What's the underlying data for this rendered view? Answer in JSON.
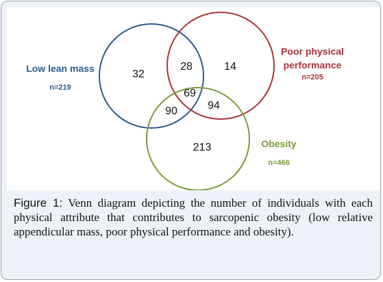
{
  "figure": {
    "caption_label": "Figure 1:",
    "caption_text": " Venn diagram depicting the number of individuals with each physical attribute that contributes to sarcopenic obesity (low relative appendicular mass, poor physical performance and obesity)."
  },
  "venn": {
    "sets": [
      {
        "id": "low_lean_mass",
        "label": "Low lean mass",
        "n_label": "n=219",
        "color": "#2e5a8a"
      },
      {
        "id": "poor_physical_performance",
        "label_line1": "Poor physical",
        "label_line2": "performance",
        "n_label": "n=205",
        "color": "#a83338"
      },
      {
        "id": "obesity",
        "label": "Obesity",
        "n_label": "n=466",
        "color": "#7a9a3a"
      }
    ],
    "regions": {
      "low_lean_mass_only": "32",
      "low_lean_mass_and_poor_performance": "28",
      "poor_performance_only": "14",
      "all_three": "69",
      "low_lean_mass_and_obesity": "90",
      "poor_performance_and_obesity": "94",
      "obesity_only": "213"
    }
  }
}
